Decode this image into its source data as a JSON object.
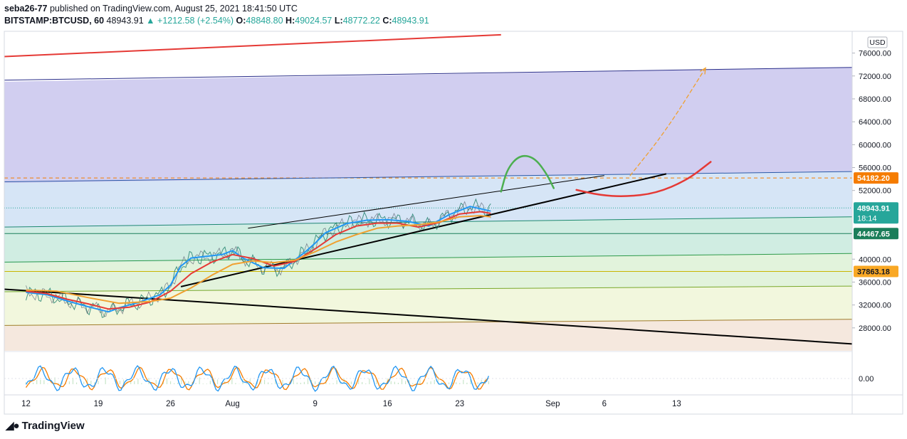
{
  "header": {
    "author": "seba26-77",
    "published_text": "published on TradingView.com, August 25, 2021 18:41:50 UTC",
    "symbol": "BITSTAMP:BTCUSD, 60",
    "last": "48943.91",
    "change": "▲ +1212.58 (+2.54%)",
    "open_label": "O:",
    "open": "48848.80",
    "high_label": "H:",
    "high": "49024.57",
    "low_label": "L:",
    "low": "48772.22",
    "close_label": "C:",
    "close": "48943.91"
  },
  "chart_data": {
    "type": "line",
    "title": "",
    "currency": "USD",
    "y_ticks": [
      "76000.00",
      "72000.00",
      "68000.00",
      "64000.00",
      "60000.00",
      "56000.00",
      "52000.00",
      "40000.00",
      "36000.00",
      "32000.00",
      "28000.00"
    ],
    "sub_pane_tick": "0.00",
    "x_ticks": [
      {
        "label": "12",
        "day": 12
      },
      {
        "label": "19",
        "day": 19
      },
      {
        "label": "26",
        "day": 26
      },
      {
        "label": "Aug",
        "day": 32
      },
      {
        "label": "9",
        "day": 40
      },
      {
        "label": "16",
        "day": 47
      },
      {
        "label": "23",
        "day": 54
      },
      {
        "label": "Sep",
        "day": 63
      },
      {
        "label": "6",
        "day": 68
      },
      {
        "label": "13",
        "day": 75
      }
    ],
    "price_labels": [
      {
        "value": "54182.20",
        "price": 54182.2,
        "color": "#f57c00"
      },
      {
        "value": "48943.91",
        "price": 48943.91,
        "color": "#26a69a",
        "sub": "18:14"
      },
      {
        "value": "44467.65",
        "price": 44467.65,
        "color": "#1b7e5a"
      },
      {
        "value": "37863.18",
        "price": 37863.18,
        "color": "#f9a825",
        "text_color": "#131722"
      }
    ],
    "series": [
      {
        "color": "#2196f3",
        "points": [
          [
            12,
            34200
          ],
          [
            14,
            33800
          ],
          [
            16,
            32700
          ],
          [
            18,
            31700
          ],
          [
            20,
            30800
          ],
          [
            21,
            31500
          ],
          [
            23,
            32500
          ],
          [
            25,
            33800
          ],
          [
            26,
            35500
          ],
          [
            27,
            38800
          ],
          [
            28,
            40200
          ],
          [
            29,
            40400
          ],
          [
            31,
            40800
          ],
          [
            32,
            41500
          ],
          [
            33,
            40200
          ],
          [
            35,
            38500
          ],
          [
            37,
            38400
          ],
          [
            39,
            41200
          ],
          [
            40,
            42800
          ],
          [
            41,
            44600
          ],
          [
            43,
            46200
          ],
          [
            45,
            46800
          ],
          [
            47,
            46900
          ],
          [
            49,
            46600
          ],
          [
            51,
            45800
          ],
          [
            53,
            47800
          ],
          [
            55,
            49200
          ],
          [
            57,
            48400
          ]
        ]
      },
      {
        "color": "#e53935",
        "points": [
          [
            12,
            34400
          ],
          [
            14,
            34000
          ],
          [
            16,
            33000
          ],
          [
            18,
            32200
          ],
          [
            20,
            31300
          ],
          [
            22,
            31600
          ],
          [
            24,
            32500
          ],
          [
            26,
            34400
          ],
          [
            28,
            37500
          ],
          [
            30,
            39500
          ],
          [
            32,
            40800
          ],
          [
            34,
            40100
          ],
          [
            36,
            38800
          ],
          [
            38,
            39600
          ],
          [
            40,
            41800
          ],
          [
            42,
            44300
          ],
          [
            44,
            45800
          ],
          [
            46,
            46300
          ],
          [
            48,
            46300
          ],
          [
            50,
            45600
          ],
          [
            52,
            46400
          ],
          [
            54,
            47900
          ],
          [
            56,
            48300
          ],
          [
            57,
            48000
          ]
        ]
      },
      {
        "color": "#f0a030",
        "points": [
          [
            12,
            34600
          ],
          [
            15,
            34400
          ],
          [
            18,
            33300
          ],
          [
            21,
            32300
          ],
          [
            24,
            32600
          ],
          [
            26,
            33200
          ],
          [
            28,
            35000
          ],
          [
            30,
            37200
          ],
          [
            32,
            39100
          ],
          [
            34,
            39700
          ],
          [
            36,
            39400
          ],
          [
            38,
            39800
          ],
          [
            40,
            41300
          ],
          [
            42,
            43000
          ],
          [
            44,
            44300
          ],
          [
            46,
            45400
          ],
          [
            48,
            45800
          ],
          [
            50,
            46000
          ],
          [
            52,
            46500
          ],
          [
            54,
            47400
          ],
          [
            56,
            47600
          ],
          [
            57,
            47400
          ]
        ]
      }
    ],
    "trend_lines": [
      {
        "color": "#e53935",
        "width": 2,
        "from": [
          0,
          74600
        ],
        "to": [
          58,
          79200
        ]
      },
      {
        "color": "#2a2e8a",
        "width": 1,
        "from": [
          0,
          71000
        ],
        "to": [
          92,
          73500
        ]
      },
      {
        "color": "#2a5aa8",
        "width": 1,
        "from": [
          0,
          53300
        ],
        "to": [
          92,
          55300
        ]
      },
      {
        "color": "#1b8a6b",
        "width": 1,
        "from": [
          0,
          45400
        ],
        "to": [
          92,
          47400
        ]
      },
      {
        "color": "#1b7e5a",
        "width": 1,
        "from": [
          0,
          44467.65
        ],
        "to": [
          92,
          44467.65
        ]
      },
      {
        "color": "#2e9a4a",
        "width": 1,
        "from": [
          0,
          39300
        ],
        "to": [
          92,
          41000
        ]
      },
      {
        "color": "#c8b400",
        "width": 1,
        "from": [
          0,
          37863.18
        ],
        "to": [
          92,
          37863.18
        ]
      },
      {
        "color": "#7aa82a",
        "width": 1,
        "from": [
          0,
          34200
        ],
        "to": [
          92,
          35300
        ]
      },
      {
        "color": "#a07a2a",
        "width": 1,
        "from": [
          0,
          28300
        ],
        "to": [
          92,
          29500
        ]
      },
      {
        "color": "#000000",
        "width": 2,
        "from": [
          0,
          35900
        ],
        "to": [
          92,
          25200
        ]
      },
      {
        "color": "#000000",
        "width": 2,
        "from": [
          27,
          35200
        ],
        "to": [
          74,
          54900
        ]
      },
      {
        "color": "#000000",
        "width": 1,
        "from": [
          33.5,
          45400
        ],
        "to": [
          68,
          54600
        ]
      }
    ],
    "fib_zones": [
      {
        "color": "rgba(120,110,210,0.34)",
        "top": [
          71000,
          73500
        ],
        "bottom": [
          53300,
          55300
        ]
      },
      {
        "color": "rgba(120,170,225,0.30)",
        "top": [
          53300,
          55300
        ],
        "bottom": [
          45400,
          47400
        ]
      },
      {
        "color": "rgba(100,195,160,0.30)",
        "top": [
          45400,
          47400
        ],
        "bottom": [
          39300,
          41000
        ]
      },
      {
        "color": "rgba(160,215,140,0.30)",
        "top": [
          39300,
          41000
        ],
        "bottom": [
          34200,
          35300
        ]
      },
      {
        "color": "rgba(215,230,150,0.32)",
        "top": [
          34200,
          35300
        ],
        "bottom": [
          28300,
          29500
        ]
      },
      {
        "color": "rgba(225,190,160,0.35)",
        "top": [
          28300,
          29500
        ],
        "bottom": [
          24000,
          24000
        ]
      }
    ],
    "projections": [
      {
        "name": "green-arc",
        "color": "#4caf50",
        "points": [
          [
            58,
            51800
          ],
          [
            58.6,
            55800
          ],
          [
            59.8,
            58200
          ],
          [
            61.2,
            57800
          ],
          [
            62.4,
            55000
          ],
          [
            63.1,
            52400
          ]
        ]
      },
      {
        "name": "red-arc",
        "color": "#e53935",
        "points": [
          [
            65.3,
            52100
          ],
          [
            67.5,
            51200
          ],
          [
            70,
            50900
          ],
          [
            73,
            51500
          ],
          [
            76,
            53800
          ],
          [
            78.3,
            57000
          ]
        ]
      },
      {
        "name": "orange-dash",
        "color": "#f0a030",
        "dashed": true,
        "points": [
          [
            70.5,
            54600
          ],
          [
            74,
            62500
          ],
          [
            77.8,
            73400
          ]
        ]
      }
    ],
    "dashed_levels": [
      {
        "price": 54182.2,
        "color": "#f57c00"
      },
      {
        "price": 48943.91,
        "color": "#26a69a"
      }
    ]
  },
  "footer": {
    "brand": "TradingView"
  }
}
